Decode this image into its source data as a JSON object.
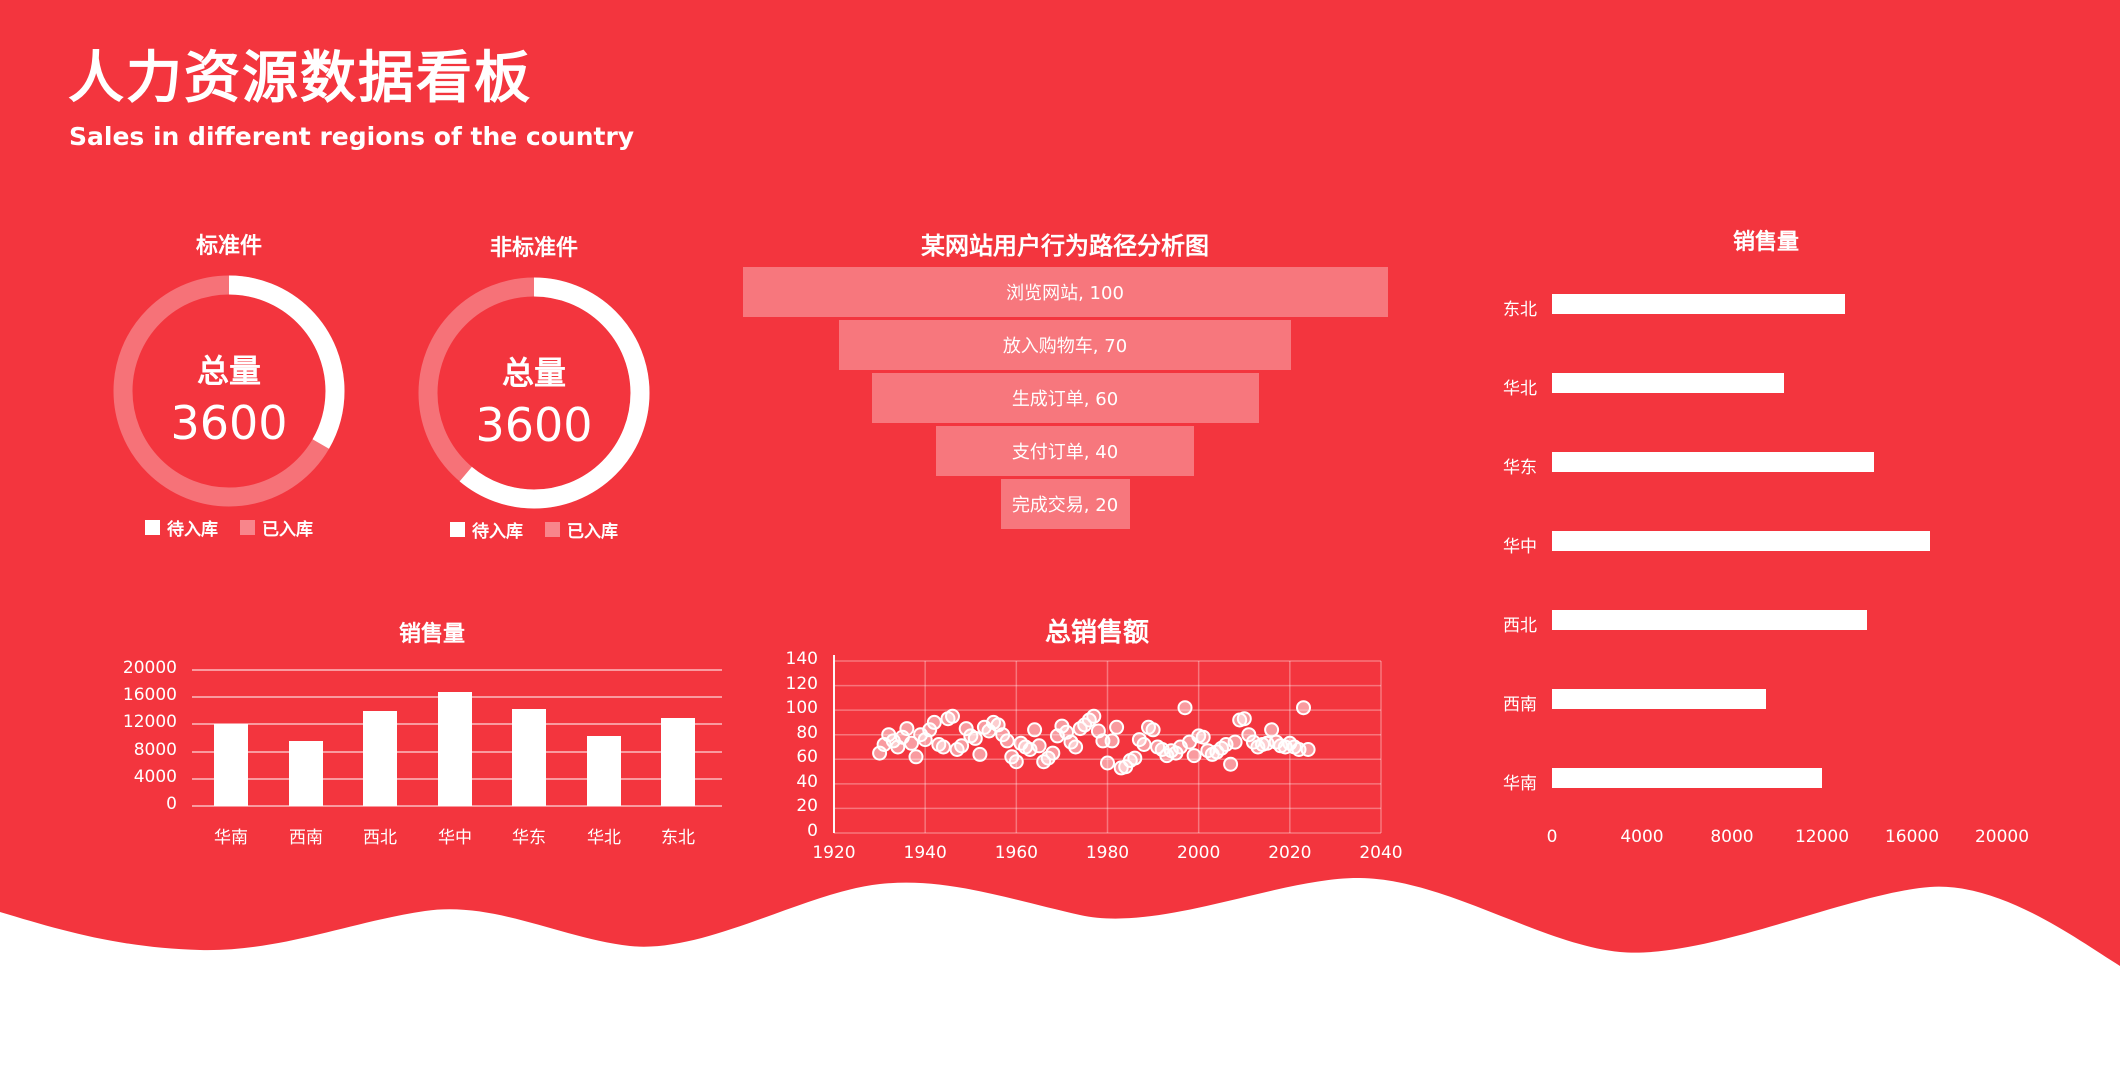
{
  "header": {
    "title": "人力资源数据看板",
    "subtitle": "Sales in different regions of the country"
  },
  "colors": {
    "background": "#F3353E",
    "foreground": "#FFFFFF",
    "translucent_fill": "rgba(255,255,255,0.33)",
    "ring_track": "rgba(255,255,255,0.30)",
    "gridline": "rgba(255,255,255,0.50)",
    "scatter_gridline": "rgba(255,255,255,0.32)",
    "scatter_point_fill": "rgba(255,255,255,0.50)"
  },
  "chart_data": [
    {
      "id": "donut-standard",
      "type": "pie",
      "title": "标准件",
      "center_label": "总量",
      "center_value": "3600",
      "total": 3600,
      "series": [
        {
          "name": "待入库",
          "value": 1200
        },
        {
          "name": "已入库",
          "value": 2400
        }
      ],
      "legend_position": "bottom"
    },
    {
      "id": "donut-nonstandard",
      "type": "pie",
      "title": "非标准件",
      "center_label": "总量",
      "center_value": "3600",
      "total": 3600,
      "series": [
        {
          "name": "待入库",
          "value": 2200
        },
        {
          "name": "已入库",
          "value": 1400
        }
      ],
      "legend_position": "bottom"
    },
    {
      "id": "funnel",
      "type": "funnel",
      "title": "某网站用户行为路径分析图",
      "stages": [
        {
          "label": "浏览网站",
          "value": 100
        },
        {
          "label": "放入购物车",
          "value": 70
        },
        {
          "label": "生成订单",
          "value": 60
        },
        {
          "label": "支付订单",
          "value": 40
        },
        {
          "label": "完成交易",
          "value": 20
        }
      ],
      "max_value": 100
    },
    {
      "id": "bar-horizontal",
      "type": "bar",
      "orientation": "horizontal",
      "title": "销售量",
      "categories": [
        "东北",
        "华北",
        "华东",
        "华中",
        "西北",
        "西南",
        "华南"
      ],
      "values": [
        13000,
        10300,
        14300,
        16800,
        14000,
        9500,
        12000
      ],
      "xlim": [
        0,
        20000
      ],
      "x_ticks": [
        0,
        4000,
        8000,
        12000,
        16000,
        20000
      ],
      "grid": false
    },
    {
      "id": "bar-vertical",
      "type": "bar",
      "orientation": "vertical",
      "title": "销售量",
      "categories": [
        "华南",
        "西南",
        "西北",
        "华中",
        "华东",
        "华北",
        "东北"
      ],
      "values": [
        12000,
        9500,
        14000,
        16800,
        14300,
        10300,
        13000
      ],
      "ylim": [
        0,
        20000
      ],
      "y_ticks": [
        0,
        4000,
        8000,
        12000,
        16000,
        20000
      ],
      "grid": true
    },
    {
      "id": "scatter-total-sales",
      "type": "scatter",
      "title": "总销售额",
      "xlim": [
        1920,
        2040
      ],
      "ylim": [
        0,
        140
      ],
      "x_ticks": [
        1920,
        1940,
        1960,
        1980,
        2000,
        2020,
        2040
      ],
      "y_ticks": [
        0,
        20,
        40,
        60,
        80,
        100,
        120,
        140
      ],
      "grid": true,
      "points": [
        [
          1930,
          65
        ],
        [
          1931,
          72
        ],
        [
          1932,
          80
        ],
        [
          1933,
          75
        ],
        [
          1934,
          70
        ],
        [
          1935,
          78
        ],
        [
          1936,
          85
        ],
        [
          1937,
          73
        ],
        [
          1938,
          62
        ],
        [
          1939,
          80
        ],
        [
          1940,
          76
        ],
        [
          1941,
          84
        ],
        [
          1942,
          90
        ],
        [
          1943,
          72
        ],
        [
          1944,
          70
        ],
        [
          1945,
          93
        ],
        [
          1946,
          95
        ],
        [
          1947,
          68
        ],
        [
          1948,
          71
        ],
        [
          1949,
          85
        ],
        [
          1950,
          79
        ],
        [
          1951,
          77
        ],
        [
          1952,
          64
        ],
        [
          1953,
          86
        ],
        [
          1954,
          83
        ],
        [
          1955,
          90
        ],
        [
          1956,
          88
        ],
        [
          1957,
          80
        ],
        [
          1958,
          75
        ],
        [
          1959,
          62
        ],
        [
          1960,
          58
        ],
        [
          1961,
          73
        ],
        [
          1962,
          70
        ],
        [
          1963,
          68
        ],
        [
          1964,
          84
        ],
        [
          1965,
          71
        ],
        [
          1966,
          58
        ],
        [
          1967,
          61
        ],
        [
          1968,
          65
        ],
        [
          1969,
          79
        ],
        [
          1970,
          87
        ],
        [
          1971,
          82
        ],
        [
          1972,
          74
        ],
        [
          1973,
          70
        ],
        [
          1974,
          85
        ],
        [
          1975,
          88
        ],
        [
          1976,
          92
        ],
        [
          1977,
          95
        ],
        [
          1978,
          83
        ],
        [
          1979,
          75
        ],
        [
          1980,
          57
        ],
        [
          1981,
          75
        ],
        [
          1982,
          86
        ],
        [
          1983,
          53
        ],
        [
          1984,
          54
        ],
        [
          1985,
          59
        ],
        [
          1986,
          61
        ],
        [
          1987,
          76
        ],
        [
          1988,
          72
        ],
        [
          1989,
          86
        ],
        [
          1990,
          84
        ],
        [
          1991,
          70
        ],
        [
          1992,
          68
        ],
        [
          1993,
          63
        ],
        [
          1994,
          67
        ],
        [
          1995,
          65
        ],
        [
          1996,
          70
        ],
        [
          1997,
          102
        ],
        [
          1998,
          74
        ],
        [
          1999,
          63
        ],
        [
          2000,
          79
        ],
        [
          2001,
          78
        ],
        [
          2002,
          67
        ],
        [
          2003,
          64
        ],
        [
          2004,
          66
        ],
        [
          2005,
          69
        ],
        [
          2006,
          72
        ],
        [
          2007,
          56
        ],
        [
          2008,
          74
        ],
        [
          2009,
          92
        ],
        [
          2010,
          93
        ],
        [
          2011,
          80
        ],
        [
          2012,
          74
        ],
        [
          2013,
          70
        ],
        [
          2014,
          72
        ],
        [
          2015,
          73
        ],
        [
          2016,
          84
        ],
        [
          2017,
          74
        ],
        [
          2018,
          71
        ],
        [
          2019,
          70
        ],
        [
          2020,
          73
        ],
        [
          2021,
          70
        ],
        [
          2022,
          68
        ],
        [
          2023,
          102
        ],
        [
          2024,
          68
        ]
      ]
    }
  ]
}
